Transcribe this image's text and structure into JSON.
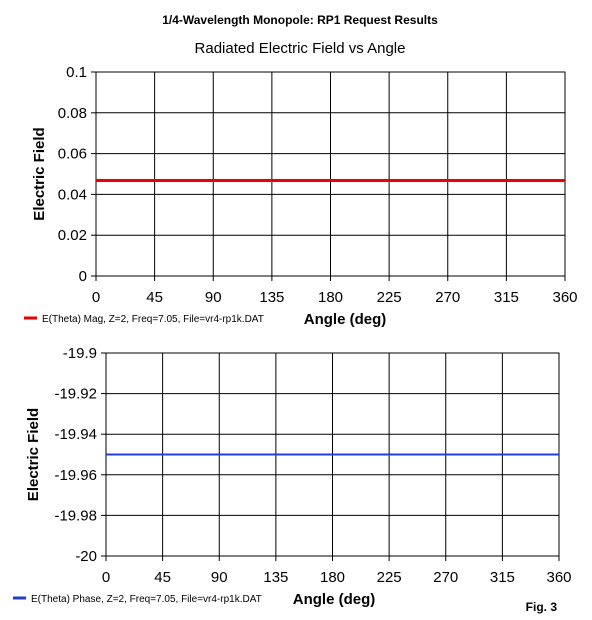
{
  "figure": {
    "title": "1/4-Wavelength Monopole:  RP1 Request Results",
    "subtitle": "Radiated Electric Field vs Angle",
    "fig_label": "Fig. 3"
  },
  "chart_data": [
    {
      "type": "line",
      "xlabel": "Angle (deg)",
      "ylabel": "Electric Field",
      "xlim": [
        0,
        360
      ],
      "ylim": [
        0,
        0.1
      ],
      "x_ticks": [
        "0",
        "45",
        "90",
        "135",
        "180",
        "225",
        "270",
        "315",
        "360"
      ],
      "y_ticks": [
        "0",
        "0.02",
        "0.04",
        "0.06",
        "0.08",
        "0.1"
      ],
      "x_tick_values": [
        0,
        45,
        90,
        135,
        180,
        225,
        270,
        315,
        360
      ],
      "y_tick_values": [
        0,
        0.02,
        0.04,
        0.06,
        0.08,
        0.1
      ],
      "grid": true,
      "legend_position": "bottom-left",
      "series": [
        {
          "name": "E(Theta) Mag, Z=2, Freq=7.05, File=vr4-rp1k.DAT",
          "color": "#ee0000",
          "x": [
            0,
            360
          ],
          "y": [
            0.0468,
            0.0468
          ]
        }
      ]
    },
    {
      "type": "line",
      "xlabel": "Angle (deg)",
      "ylabel": "Electric Field",
      "xlim": [
        0,
        360
      ],
      "ylim": [
        -20,
        -19.9
      ],
      "x_ticks": [
        "0",
        "45",
        "90",
        "135",
        "180",
        "225",
        "270",
        "315",
        "360"
      ],
      "y_ticks": [
        "-20",
        "-19.98",
        "-19.96",
        "-19.94",
        "-19.92",
        "-19.9"
      ],
      "x_tick_values": [
        0,
        45,
        90,
        135,
        180,
        225,
        270,
        315,
        360
      ],
      "y_tick_values": [
        -20,
        -19.98,
        -19.96,
        -19.94,
        -19.92,
        -19.9
      ],
      "grid": true,
      "legend_position": "bottom-left",
      "series": [
        {
          "name": "E(Theta) Phase, Z=2, Freq=7.05, File=vr4-rp1k.DAT",
          "color": "#1f3fd6",
          "x": [
            0,
            360
          ],
          "y": [
            -19.95,
            -19.95
          ]
        }
      ]
    }
  ]
}
